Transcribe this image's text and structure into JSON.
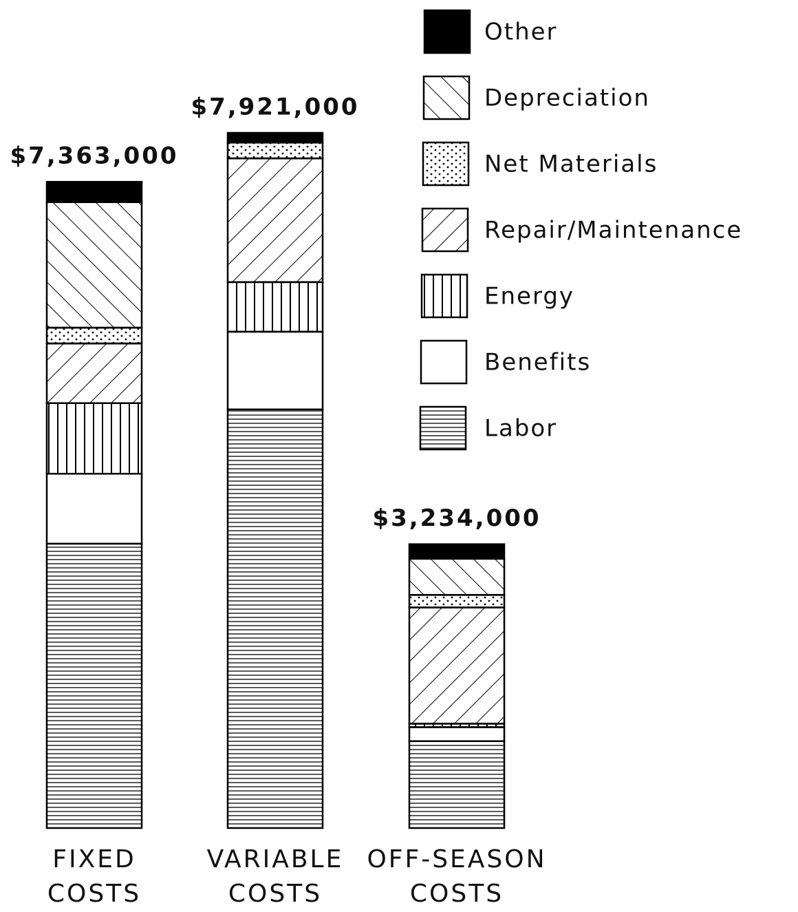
{
  "chart_data": {
    "type": "stacked-bar",
    "categories": [
      [
        "FIXED",
        "COSTS"
      ],
      [
        "VARIABLE",
        "COSTS"
      ],
      [
        "OFF-SEASON",
        "COSTS"
      ]
    ],
    "totals": [
      7363000,
      7921000,
      3234000
    ],
    "total_labels": [
      "$7,363,000",
      "$7,921,000",
      "$3,234,000"
    ],
    "series": [
      {
        "name": "Labor",
        "color": "#000000",
        "pattern": "horizontal",
        "values": [
          3240000,
          4770000,
          990000
        ]
      },
      {
        "name": "Benefits",
        "color": "#000000",
        "pattern": "none",
        "values": [
          797000,
          885000,
          159000
        ]
      },
      {
        "name": "Energy",
        "color": "#000000",
        "pattern": "vertical",
        "values": [
          804000,
          565000,
          40000
        ]
      },
      {
        "name": "Repair/Maintenance",
        "color": "#000000",
        "pattern": "diag-up",
        "values": [
          680000,
          1410000,
          1324000
        ]
      },
      {
        "name": "Net Materials",
        "color": "#000000",
        "pattern": "dots",
        "values": [
          180000,
          180000,
          143000
        ]
      },
      {
        "name": "Depreciation",
        "color": "#000000",
        "pattern": "diag-down",
        "values": [
          1430000,
          0,
          412000
        ]
      },
      {
        "name": "Other",
        "color": "#000000",
        "pattern": "solid",
        "values": [
          232000,
          111000,
          166000
        ]
      }
    ],
    "legend": "top-right"
  }
}
